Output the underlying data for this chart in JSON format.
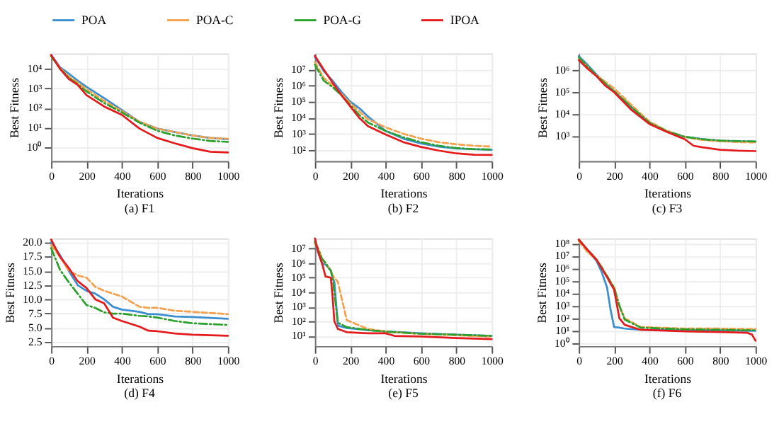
{
  "chart_data": [
    {
      "type": "line",
      "title": "(a) F1",
      "xlabel": "Iterations",
      "ylabel": "Best Fitness",
      "log": "y",
      "grid": true,
      "legend": "top",
      "xlim": [
        0,
        1000
      ],
      "xticks": [
        0,
        200,
        400,
        600,
        800,
        1000
      ],
      "ylim": [
        0.2,
        60000
      ],
      "yticks": [
        {
          "value": 1,
          "label": "10⁰"
        },
        {
          "value": 10,
          "label": "10¹"
        },
        {
          "value": 100,
          "label": "10²"
        },
        {
          "value": 1000,
          "label": "10³"
        },
        {
          "value": 10000,
          "label": "10⁴"
        }
      ],
      "x": [
        0,
        50,
        100,
        150,
        200,
        300,
        400,
        500,
        600,
        700,
        800,
        900,
        1000
      ],
      "series": [
        {
          "name": "POA",
          "color": "#3b8fd1",
          "line_style": "solid",
          "values": [
            50000,
            12000,
            5600,
            2500,
            1200,
            320,
            80,
            20,
            9,
            6,
            4,
            3,
            2.6
          ]
        },
        {
          "name": "POA-C",
          "color": "#f5a04a",
          "line_style": "dashed",
          "values": [
            45000,
            11000,
            4000,
            2000,
            900,
            230,
            70,
            20,
            9,
            6,
            4,
            3,
            2.7
          ]
        },
        {
          "name": "POA-G",
          "color": "#2ca02c",
          "line_style": "dashdot",
          "values": [
            45000,
            10000,
            3500,
            1600,
            700,
            180,
            60,
            18,
            7,
            4,
            2.8,
            2.1,
            1.9
          ]
        },
        {
          "name": "IPOA",
          "color": "#e41a1c",
          "line_style": "solid",
          "values": [
            50000,
            10000,
            3000,
            1500,
            450,
            120,
            45,
            9,
            3,
            1.6,
            0.9,
            0.6,
            0.55
          ]
        }
      ]
    },
    {
      "type": "line",
      "title": "(b) F2",
      "xlabel": "Iterations",
      "ylabel": "Best Fitness",
      "log": "y",
      "grid": true,
      "xlim": [
        0,
        1000
      ],
      "xticks": [
        0,
        200,
        400,
        600,
        800,
        1000
      ],
      "ylim": [
        20,
        100000000
      ],
      "yticks": [
        {
          "value": 100,
          "label": "10²"
        },
        {
          "value": 1000,
          "label": "10³"
        },
        {
          "value": 10000,
          "label": "10⁴"
        },
        {
          "value": 100000,
          "label": "10⁵"
        },
        {
          "value": 1000000,
          "label": "10⁶"
        },
        {
          "value": 10000000,
          "label": "10⁷"
        }
      ],
      "x": [
        0,
        50,
        100,
        150,
        200,
        250,
        300,
        400,
        500,
        600,
        700,
        800,
        900,
        1000
      ],
      "series": [
        {
          "name": "POA",
          "color": "#3b8fd1",
          "line_style": "solid",
          "values": [
            60000000,
            8000000,
            2000000,
            400000,
            100000,
            40000,
            12000,
            1500,
            500,
            250,
            160,
            120,
            110,
            100
          ]
        },
        {
          "name": "POA-C",
          "color": "#f5a04a",
          "line_style": "dashed",
          "values": [
            30000000,
            3000000,
            1000000,
            300000,
            80000,
            25000,
            8000,
            2500,
            1000,
            500,
            300,
            220,
            180,
            160
          ]
        },
        {
          "name": "POA-G",
          "color": "#2ca02c",
          "line_style": "dashdot",
          "values": [
            20000000,
            2000000,
            800000,
            250000,
            60000,
            15000,
            5000,
            1500,
            600,
            300,
            180,
            130,
            110,
            105
          ]
        },
        {
          "name": "IPOA",
          "color": "#e41a1c",
          "line_style": "solid",
          "values": [
            70000000,
            10000000,
            1500000,
            250000,
            50000,
            10000,
            3000,
            900,
            300,
            150,
            90,
            60,
            50,
            48
          ]
        }
      ]
    },
    {
      "type": "line",
      "title": "(c) F3",
      "xlabel": "Iterations",
      "ylabel": "Best Fitness",
      "log": "y",
      "grid": true,
      "xlim": [
        0,
        1000
      ],
      "xticks": [
        0,
        200,
        400,
        600,
        800,
        1000
      ],
      "ylim": [
        70,
        6000000
      ],
      "yticks": [
        {
          "value": 1000,
          "label": "10³"
        },
        {
          "value": 10000,
          "label": "10⁴"
        },
        {
          "value": 100000,
          "label": "10⁵"
        },
        {
          "value": 1000000,
          "label": "10⁶"
        }
      ],
      "x": [
        0,
        50,
        100,
        150,
        200,
        300,
        400,
        500,
        600,
        650,
        700,
        800,
        900,
        1000
      ],
      "series": [
        {
          "name": "POA",
          "color": "#3b8fd1",
          "line_style": "solid",
          "values": [
            4500000,
            1800000,
            650000,
            250000,
            110000,
            20000,
            4000,
            1600,
            900,
            800,
            700,
            600,
            560,
            540
          ]
        },
        {
          "name": "POA-C",
          "color": "#f5a04a",
          "line_style": "dashed",
          "values": [
            4000000,
            1500000,
            600000,
            300000,
            150000,
            25000,
            4500,
            1700,
            900,
            750,
            650,
            560,
            520,
            500
          ]
        },
        {
          "name": "POA-G",
          "color": "#2ca02c",
          "line_style": "dashdot",
          "values": [
            4000000,
            1500000,
            600000,
            250000,
            110000,
            20000,
            4000,
            1600,
            900,
            800,
            700,
            610,
            570,
            550
          ]
        },
        {
          "name": "IPOA",
          "color": "#e41a1c",
          "line_style": "solid",
          "values": [
            3000000,
            1200000,
            550000,
            200000,
            100000,
            15000,
            3500,
            1500,
            700,
            350,
            300,
            230,
            210,
            200
          ]
        }
      ]
    },
    {
      "type": "line",
      "title": "(d) F4",
      "xlabel": "Iterations",
      "ylabel": "Best Fitness",
      "grid": true,
      "xlim": [
        0,
        1000
      ],
      "xticks": [
        0,
        200,
        400,
        600,
        800,
        1000
      ],
      "ylim": [
        1.8,
        20.7
      ],
      "yticks": [
        {
          "value": 2.5,
          "label": "2.5"
        },
        {
          "value": 5,
          "label": "5.0"
        },
        {
          "value": 7.5,
          "label": "7.5"
        },
        {
          "value": 10,
          "label": "10.0"
        },
        {
          "value": 12.5,
          "label": "12.5"
        },
        {
          "value": 15,
          "label": "15.0"
        },
        {
          "value": 17.5,
          "label": "17.5"
        },
        {
          "value": 20,
          "label": "20.0"
        }
      ],
      "x": [
        0,
        50,
        100,
        150,
        200,
        250,
        300,
        350,
        400,
        500,
        550,
        600,
        700,
        800,
        1000
      ],
      "series": [
        {
          "name": "POA",
          "color": "#3b8fd1",
          "line_style": "solid",
          "values": [
            20,
            17.8,
            15,
            12.5,
            11.5,
            11,
            10,
            8.7,
            8.2,
            7.8,
            7.4,
            7.4,
            7,
            6.9,
            6.6
          ]
        },
        {
          "name": "POA-C",
          "color": "#f5a04a",
          "line_style": "dashed",
          "values": [
            19.5,
            17.5,
            15,
            14.2,
            13.8,
            12.2,
            11.5,
            11,
            10.5,
            8.7,
            8.5,
            8.5,
            8,
            7.8,
            7.4
          ]
        },
        {
          "name": "POA-G",
          "color": "#2ca02c",
          "line_style": "dashdot",
          "values": [
            19,
            15.2,
            13,
            11,
            9,
            8.5,
            7.7,
            7.5,
            7.5,
            7.1,
            7,
            6.8,
            6.2,
            5.8,
            5.5
          ]
        },
        {
          "name": "IPOA",
          "color": "#e41a1c",
          "line_style": "solid",
          "values": [
            20.5,
            17.5,
            15.5,
            13.2,
            12,
            10,
            9.3,
            6.8,
            6.2,
            5.2,
            4.5,
            4.4,
            4,
            3.8,
            3.6
          ]
        }
      ]
    },
    {
      "type": "line",
      "title": "(e) F5",
      "xlabel": "Iterations",
      "ylabel": "Best Fitness",
      "log": "y",
      "grid": true,
      "xlim": [
        0,
        1000
      ],
      "xticks": [
        0,
        200,
        400,
        600,
        800,
        1000
      ],
      "ylim": [
        2,
        50000000
      ],
      "yticks": [
        {
          "value": 10,
          "label": "10¹"
        },
        {
          "value": 100,
          "label": "10²"
        },
        {
          "value": 1000,
          "label": "10³"
        },
        {
          "value": 10000,
          "label": "10⁴"
        },
        {
          "value": 100000,
          "label": "10⁵"
        },
        {
          "value": 1000000,
          "label": "10⁶"
        },
        {
          "value": 10000000,
          "label": "10⁷"
        }
      ],
      "x": [
        0,
        20,
        40,
        60,
        90,
        100,
        110,
        130,
        180,
        300,
        400,
        450,
        600,
        800,
        1000
      ],
      "series": [
        {
          "name": "POA",
          "color": "#3b8fd1",
          "line_style": "solid",
          "values": [
            30000000,
            5000000,
            1000000,
            800000,
            300000,
            100000,
            50000,
            50,
            35,
            25,
            20,
            19,
            15,
            12,
            10
          ]
        },
        {
          "name": "POA-C",
          "color": "#f5a04a",
          "line_style": "dashed",
          "values": [
            20000000,
            10000000,
            2000000,
            1000000,
            300000,
            150000,
            100000,
            50000,
            120,
            30,
            20,
            18,
            14,
            11,
            9
          ]
        },
        {
          "name": "POA-G",
          "color": "#2ca02c",
          "line_style": "dashdot",
          "values": [
            30000000,
            8000000,
            2000000,
            1000000,
            300000,
            100000,
            10000,
            80,
            40,
            25,
            20,
            18,
            14,
            12,
            10
          ]
        },
        {
          "name": "IPOA",
          "color": "#e41a1c",
          "line_style": "solid",
          "values": [
            50000000,
            5000000,
            1000000,
            120000,
            100000,
            5000,
            100,
            30,
            18,
            15,
            15,
            10,
            9,
            7,
            6
          ]
        }
      ]
    },
    {
      "type": "line",
      "title": "(f) F6",
      "xlabel": "Iterations",
      "ylabel": "Best Fitness",
      "log": "y",
      "grid": true,
      "xlim": [
        0,
        1000
      ],
      "xticks": [
        0,
        200,
        400,
        600,
        800,
        1000
      ],
      "ylim": [
        0.6,
        250000000
      ],
      "yticks": [
        {
          "value": 1,
          "label": "10⁰"
        },
        {
          "value": 10,
          "label": "10¹"
        },
        {
          "value": 100,
          "label": "10²"
        },
        {
          "value": 1000,
          "label": "10³"
        },
        {
          "value": 10000,
          "label": "10⁴"
        },
        {
          "value": 100000,
          "label": "10⁵"
        },
        {
          "value": 1000000,
          "label": "10⁶"
        },
        {
          "value": 10000000,
          "label": "10⁷"
        },
        {
          "value": 100000000,
          "label": "10⁸"
        }
      ],
      "x": [
        0,
        50,
        100,
        130,
        160,
        180,
        200,
        230,
        260,
        350,
        600,
        800,
        950,
        980,
        1000
      ],
      "series": [
        {
          "name": "POA",
          "color": "#3b8fd1",
          "line_style": "solid",
          "values": [
            200000000,
            30000000,
            4000000,
            500000,
            30000,
            500,
            20,
            18,
            15,
            12,
            11,
            11,
            10,
            10,
            10
          ]
        },
        {
          "name": "POA-C",
          "color": "#f5a04a",
          "line_style": "dashed",
          "values": [
            150000000,
            20000000,
            5000000,
            1200000,
            250000,
            80000,
            30000,
            1000,
            100,
            20,
            15,
            15,
            14,
            14,
            14
          ]
        },
        {
          "name": "POA-G",
          "color": "#2ca02c",
          "line_style": "dashdot",
          "values": [
            200000000,
            30000000,
            5000000,
            1200000,
            250000,
            80000,
            30000,
            1000,
            80,
            18,
            13,
            12,
            11,
            11,
            11
          ]
        },
        {
          "name": "IPOA",
          "color": "#e41a1c",
          "line_style": "solid",
          "values": [
            200000000,
            30000000,
            5000000,
            1000000,
            200000,
            60000,
            20000,
            100,
            30,
            12,
            9,
            8,
            7,
            5,
            1.6
          ]
        }
      ]
    }
  ]
}
